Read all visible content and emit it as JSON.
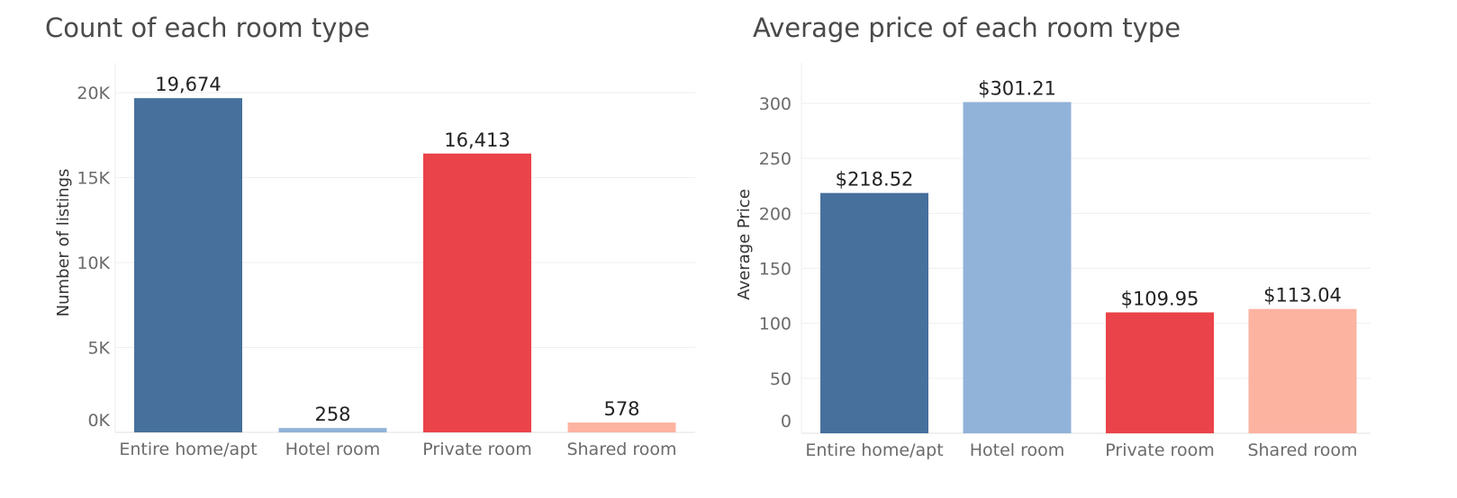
{
  "chart_data": [
    {
      "type": "bar",
      "title": "Count of each room type",
      "xlabel": "",
      "ylabel": "Number of listings",
      "categories": [
        "Entire home/apt",
        "Hotel room",
        "Private room",
        "Shared room"
      ],
      "values": [
        19674,
        258,
        16413,
        578
      ],
      "value_labels": [
        "19,674",
        "258",
        "16,413",
        "578"
      ],
      "colors": [
        "#47709d",
        "#92b3d9",
        "#ea4349",
        "#fcb3a0"
      ],
      "ylim": [
        0,
        20000
      ],
      "yticks": [
        0,
        5000,
        10000,
        15000,
        20000
      ],
      "ytick_labels": [
        "0K",
        "5K",
        "10K",
        "15K",
        "20K"
      ],
      "grid": true
    },
    {
      "type": "bar",
      "title": "Average price of each room type",
      "xlabel": "",
      "ylabel": "Average Price",
      "categories": [
        "Entire home/apt",
        "Hotel room",
        "Private room",
        "Shared room"
      ],
      "values": [
        218.52,
        301.21,
        109.95,
        113.04
      ],
      "value_labels": [
        "$218.52",
        "$301.21",
        "$109.95",
        "$113.04"
      ],
      "colors": [
        "#47709d",
        "#92b3d9",
        "#ea4349",
        "#fcb3a0"
      ],
      "ylim": [
        0,
        300
      ],
      "yticks": [
        0,
        50,
        100,
        150,
        200,
        250,
        300
      ],
      "ytick_labels": [
        "0",
        "50",
        "100",
        "150",
        "200",
        "250",
        "300"
      ],
      "grid": true
    }
  ]
}
